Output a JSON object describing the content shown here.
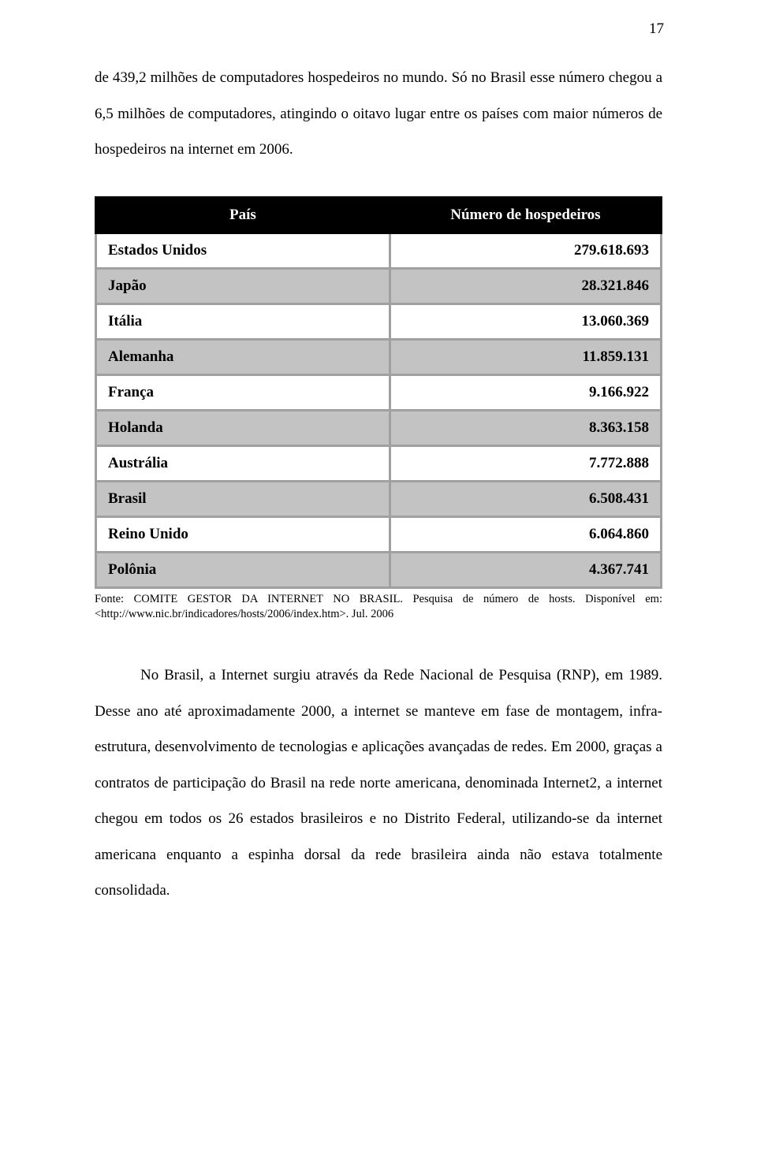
{
  "page_number": "17",
  "paragraphs": {
    "p1": "de 439,2 milhões de computadores hospedeiros no mundo. Só no Brasil esse número chegou a 6,5 milhões de computadores, atingindo o oitavo lugar entre os países com maior números de hospedeiros na internet em 2006.",
    "p2": "No Brasil, a Internet surgiu através da Rede Nacional de Pesquisa (RNP), em 1989. Desse ano até aproximadamente 2000, a internet se manteve em fase de montagem, infra-estrutura, desenvolvimento de tecnologias e aplicações avançadas de redes. Em 2000, graças a contratos de participação do Brasil na rede norte americana, denominada Internet2, a internet chegou em todos os 26 estados brasileiros e no Distrito Federal, utilizando-se da internet americana enquanto a espinha dorsal da rede brasileira ainda não estava totalmente consolidada."
  },
  "table": {
    "header_country": "País",
    "header_value": "Número de hospedeiros",
    "header_bg": "#000000",
    "header_fg": "#ffffff",
    "row_bg_odd": "#ffffff",
    "row_bg_even": "#c3c3c3",
    "border_color": "#a0a0a0",
    "font_size_pt": 14,
    "rows": [
      {
        "country": "Estados Unidos",
        "value": "279.618.693"
      },
      {
        "country": "Japão",
        "value": "28.321.846"
      },
      {
        "country": "Itália",
        "value": "13.060.369"
      },
      {
        "country": "Alemanha",
        "value": "11.859.131"
      },
      {
        "country": "França",
        "value": "9.166.922"
      },
      {
        "country": "Holanda",
        "value": "8.363.158"
      },
      {
        "country": "Austrália",
        "value": "7.772.888"
      },
      {
        "country": "Brasil",
        "value": "6.508.431"
      },
      {
        "country": "Reino Unido",
        "value": "6.064.860"
      },
      {
        "country": "Polônia",
        "value": "4.367.741"
      }
    ]
  },
  "source_citation": "Fonte: COMITE GESTOR DA INTERNET NO BRASIL. Pesquisa de número de hosts. Disponível em: <http://www.nic.br/indicadores/hosts/2006/index.htm>. Jul. 2006"
}
